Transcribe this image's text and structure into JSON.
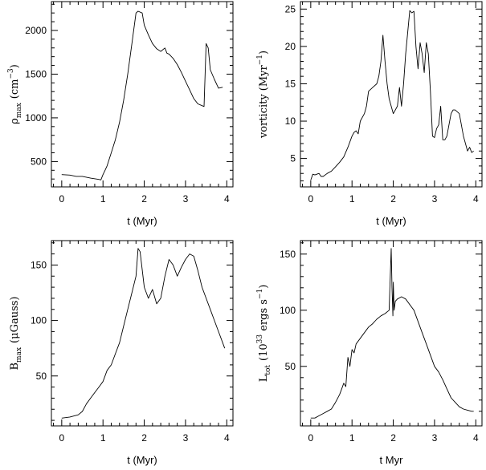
{
  "chart_data": [
    {
      "type": "line",
      "xlabel": "t (Myr)",
      "ylabel": "ρ",
      "ylabel_sub": "max",
      "ylabel_unit": "(cm",
      "ylabel_sup": "−3",
      "ylabel_tail": ")",
      "xlim": [
        -0.25,
        4.15
      ],
      "ylim": [
        210,
        2330
      ],
      "xticks": [
        0,
        1,
        2,
        3,
        4
      ],
      "yticks": [
        500,
        1000,
        1500,
        2000
      ],
      "grid": false,
      "series": [
        {
          "x": [
            0.0,
            0.2,
            0.35,
            0.5,
            0.7,
            0.9,
            0.95,
            1.0,
            1.05,
            1.1,
            1.2,
            1.3,
            1.4,
            1.5,
            1.6,
            1.7,
            1.8,
            1.85,
            1.95,
            2.0,
            2.1,
            2.2,
            2.3,
            2.4,
            2.5,
            2.55,
            2.6,
            2.7,
            2.8,
            2.9,
            3.0,
            3.1,
            3.2,
            3.3,
            3.4,
            3.45,
            3.5,
            3.55,
            3.6,
            3.7,
            3.8,
            3.9
          ],
          "y": [
            350,
            345,
            330,
            330,
            310,
            295,
            290,
            350,
            400,
            450,
            600,
            750,
            950,
            1200,
            1500,
            1850,
            2200,
            2220,
            2200,
            2060,
            1950,
            1850,
            1790,
            1760,
            1800,
            1740,
            1730,
            1680,
            1610,
            1520,
            1420,
            1320,
            1220,
            1160,
            1140,
            1130,
            1850,
            1800,
            1550,
            1440,
            1340,
            1350
          ]
        }
      ]
    },
    {
      "type": "line",
      "xlabel": "t (Myr)",
      "ylabel": "vorticity (Myr",
      "ylabel_sup": "−1",
      "ylabel_tail": ")",
      "xlim": [
        -0.25,
        4.15
      ],
      "ylim": [
        1.2,
        26
      ],
      "xticks": [
        0,
        1,
        2,
        3,
        4
      ],
      "yticks": [
        5,
        10,
        15,
        20,
        25
      ],
      "grid": false,
      "series": [
        {
          "x": [
            0.0,
            0.05,
            0.1,
            0.2,
            0.25,
            0.3,
            0.4,
            0.5,
            0.6,
            0.7,
            0.8,
            0.9,
            1.0,
            1.05,
            1.1,
            1.15,
            1.2,
            1.3,
            1.35,
            1.4,
            1.5,
            1.6,
            1.65,
            1.7,
            1.75,
            1.8,
            1.85,
            1.9,
            2.0,
            2.1,
            2.15,
            2.2,
            2.25,
            2.3,
            2.4,
            2.45,
            2.5,
            2.55,
            2.6,
            2.65,
            2.7,
            2.75,
            2.8,
            2.85,
            2.9,
            2.95,
            3.0,
            3.05,
            3.1,
            3.15,
            3.2,
            3.25,
            3.3,
            3.4,
            3.45,
            3.5,
            3.6,
            3.7,
            3.8,
            3.85,
            3.9,
            3.95
          ],
          "y": [
            2.1,
            2.9,
            2.8,
            3.0,
            2.6,
            2.6,
            3.0,
            3.3,
            3.9,
            4.5,
            5.2,
            6.5,
            8.0,
            8.5,
            8.7,
            8.3,
            10.0,
            11.0,
            12.0,
            14.0,
            14.5,
            15.0,
            16.0,
            18.0,
            21.5,
            18.0,
            15.0,
            13.0,
            11.0,
            12.0,
            14.5,
            12.0,
            15.0,
            19.0,
            24.8,
            24.5,
            24.7,
            20.0,
            17.0,
            20.5,
            19.0,
            16.5,
            20.5,
            19.0,
            14.0,
            8.0,
            7.8,
            9.0,
            9.5,
            12.0,
            7.5,
            7.5,
            8.0,
            11.0,
            11.5,
            11.5,
            11.0,
            8.0,
            6.0,
            6.5,
            5.8,
            6.0
          ]
        }
      ]
    },
    {
      "type": "line",
      "xlabel": "t (Myr)",
      "ylabel": "B",
      "ylabel_sub": "max",
      "ylabel_unit": "(μGauss)",
      "xlim": [
        -0.25,
        4.15
      ],
      "ylim": [
        5,
        172
      ],
      "xticks": [
        0,
        1,
        2,
        3,
        4
      ],
      "yticks": [
        50,
        100,
        150
      ],
      "grid": false,
      "series": [
        {
          "x": [
            0.0,
            0.2,
            0.4,
            0.5,
            0.6,
            0.7,
            0.8,
            0.9,
            1.0,
            1.1,
            1.2,
            1.3,
            1.4,
            1.5,
            1.6,
            1.7,
            1.8,
            1.85,
            1.9,
            2.0,
            2.1,
            2.2,
            2.3,
            2.4,
            2.5,
            2.6,
            2.7,
            2.8,
            2.9,
            3.0,
            3.1,
            3.2,
            3.3,
            3.4,
            3.5,
            3.6,
            3.7,
            3.8,
            3.9,
            3.95
          ],
          "y": [
            12,
            13,
            15,
            18,
            25,
            30,
            35,
            40,
            45,
            55,
            60,
            70,
            80,
            95,
            110,
            125,
            140,
            165,
            162,
            130,
            120,
            128,
            115,
            120,
            140,
            155,
            150,
            140,
            148,
            155,
            160,
            158,
            145,
            130,
            120,
            110,
            100,
            90,
            80,
            75
          ]
        }
      ]
    },
    {
      "type": "line",
      "xlabel": "t Myr",
      "ylabel": "L",
      "ylabel_sub": "tot",
      "ylabel_unit": "(10",
      "ylabel_sup": "33",
      "ylabel_tail": " ergs s",
      "ylabel_sup2": "−1",
      "ylabel_tail2": ")",
      "xlim": [
        -0.25,
        4.15
      ],
      "ylim": [
        -3,
        162
      ],
      "xticks": [
        0,
        1,
        2,
        3,
        4
      ],
      "yticks": [
        50,
        100,
        150
      ],
      "grid": false,
      "series": [
        {
          "x": [
            0.0,
            0.1,
            0.2,
            0.3,
            0.4,
            0.5,
            0.6,
            0.7,
            0.75,
            0.8,
            0.85,
            0.9,
            0.95,
            1.0,
            1.05,
            1.1,
            1.2,
            1.3,
            1.4,
            1.5,
            1.6,
            1.7,
            1.8,
            1.9,
            1.95,
            1.97,
            1.99,
            2.0,
            2.02,
            2.05,
            2.1,
            2.2,
            2.3,
            2.4,
            2.5,
            2.6,
            2.7,
            2.8,
            2.9,
            3.0,
            3.1,
            3.2,
            3.3,
            3.4,
            3.5,
            3.6,
            3.7,
            3.8,
            3.9,
            3.95
          ],
          "y": [
            4,
            4,
            6,
            8,
            10,
            12,
            18,
            25,
            30,
            35,
            32,
            58,
            50,
            65,
            62,
            70,
            75,
            80,
            85,
            88,
            92,
            95,
            97,
            100,
            155,
            120,
            95,
            125,
            100,
            108,
            110,
            112,
            110,
            105,
            100,
            90,
            80,
            70,
            60,
            50,
            45,
            38,
            30,
            22,
            18,
            14,
            12,
            11,
            10,
            10
          ]
        }
      ]
    }
  ]
}
